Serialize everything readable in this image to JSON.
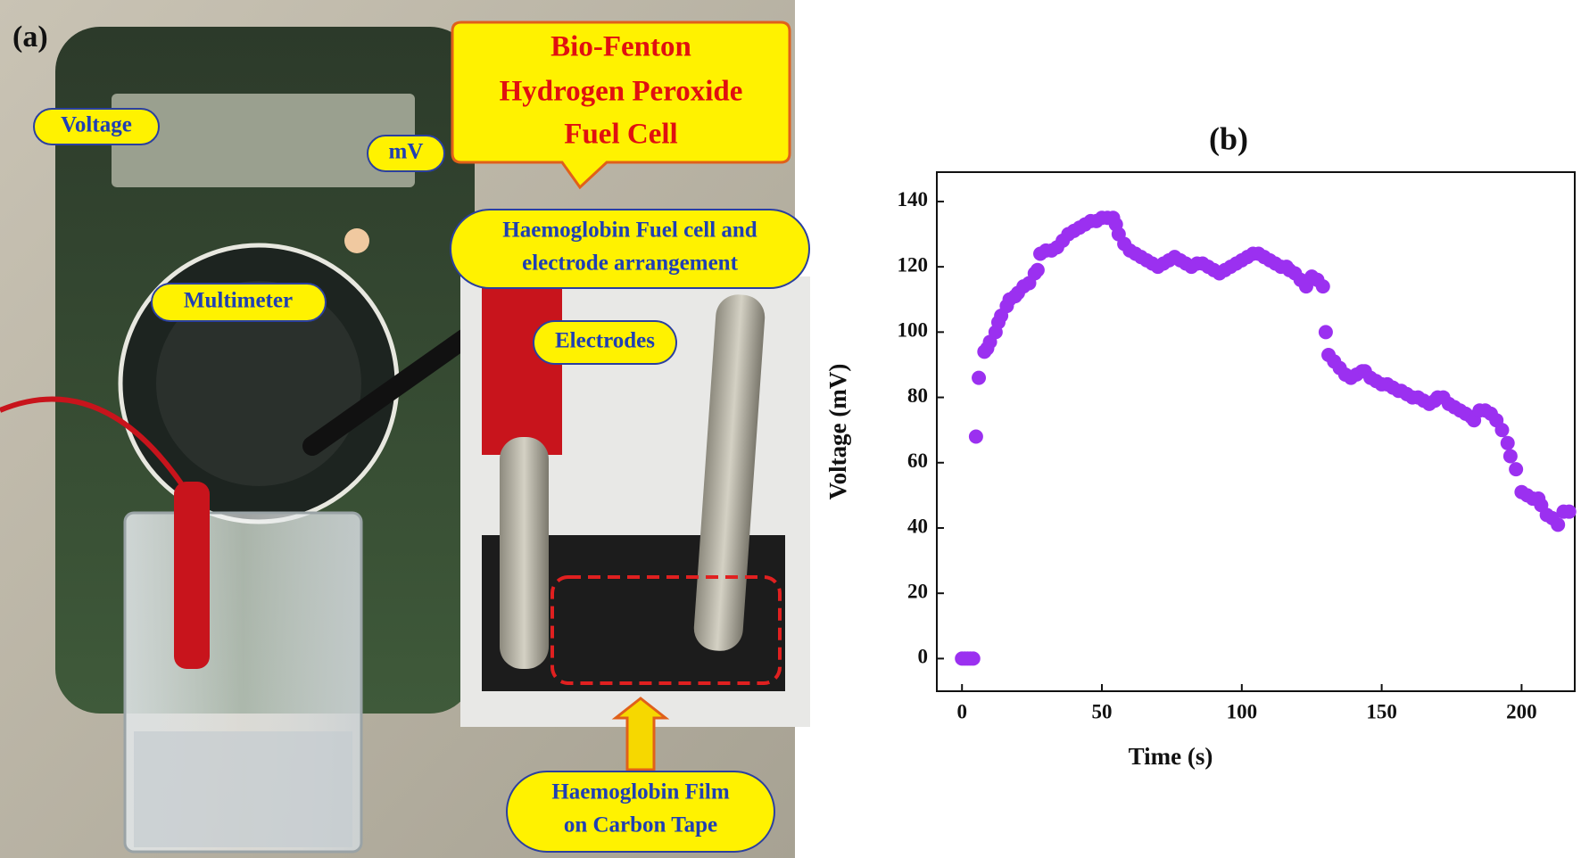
{
  "panel_a": {
    "label": "(a)",
    "title": [
      "Bio-Fenton",
      "Hydrogen Peroxide",
      "Fuel Cell"
    ],
    "callouts": [
      "Voltage",
      "mV",
      "Multimeter",
      [
        "Haemoglobin Fuel cell and",
        "electrode arrangement"
      ],
      "Electrodes",
      [
        "Haemoglobin Film",
        "on Carbon Tape"
      ]
    ]
  },
  "chart_data": {
    "type": "scatter",
    "title": "(b)",
    "x_label": "Time (s)",
    "y_label": "Voltage (mV)",
    "color": "#9b30f0",
    "xlim": [
      -9,
      219
    ],
    "ylim": [
      -10,
      149
    ],
    "xticks": [
      0,
      50,
      100,
      150,
      200
    ],
    "yticks": [
      0,
      20,
      40,
      60,
      80,
      100,
      120,
      140
    ],
    "x": [
      0,
      1,
      2,
      3,
      4,
      5,
      6,
      8,
      9,
      10,
      12,
      13,
      14,
      16,
      17,
      19,
      20,
      22,
      24,
      26,
      27,
      28,
      30,
      32,
      34,
      36,
      38,
      40,
      42,
      44,
      46,
      48,
      50,
      52,
      54,
      55,
      56,
      58,
      60,
      62,
      64,
      66,
      68,
      70,
      72,
      74,
      76,
      78,
      80,
      82,
      84,
      86,
      88,
      90,
      92,
      94,
      96,
      98,
      100,
      102,
      104,
      106,
      108,
      110,
      112,
      114,
      116,
      117,
      119,
      121,
      123,
      125,
      127,
      129,
      130,
      131,
      133,
      135,
      137,
      139,
      141,
      143,
      144,
      146,
      148,
      150,
      152,
      154,
      156,
      157,
      159,
      161,
      163,
      165,
      167,
      169,
      170,
      172,
      174,
      176,
      178,
      180,
      182,
      183,
      185,
      187,
      189,
      191,
      193,
      195,
      196,
      198,
      200,
      202,
      204,
      206,
      207,
      209,
      211,
      213,
      215,
      217
    ],
    "values": [
      0,
      0,
      0,
      0,
      0,
      68,
      86,
      94,
      95,
      97,
      100,
      103,
      105,
      108,
      110,
      111,
      112,
      114,
      115,
      118,
      119,
      124,
      125,
      125,
      126,
      128,
      130,
      131,
      132,
      133,
      134,
      134,
      135,
      135,
      135,
      133,
      130,
      127,
      125,
      124,
      123,
      122,
      121,
      120,
      121,
      122,
      123,
      122,
      121,
      120,
      121,
      121,
      120,
      119,
      118,
      119,
      120,
      121,
      122,
      123,
      124,
      124,
      123,
      122,
      121,
      120,
      120,
      119,
      118,
      116,
      114,
      117,
      116,
      114,
      100,
      93,
      91,
      89,
      87,
      86,
      87,
      88,
      88,
      86,
      85,
      84,
      84,
      83,
      82,
      82,
      81,
      80,
      80,
      79,
      78,
      79,
      80,
      80,
      78,
      77,
      76,
      75,
      74,
      73,
      76,
      76,
      75,
      73,
      70,
      66,
      62,
      58,
      51,
      50,
      49,
      49,
      47,
      44,
      43,
      41,
      45,
      45
    ]
  }
}
